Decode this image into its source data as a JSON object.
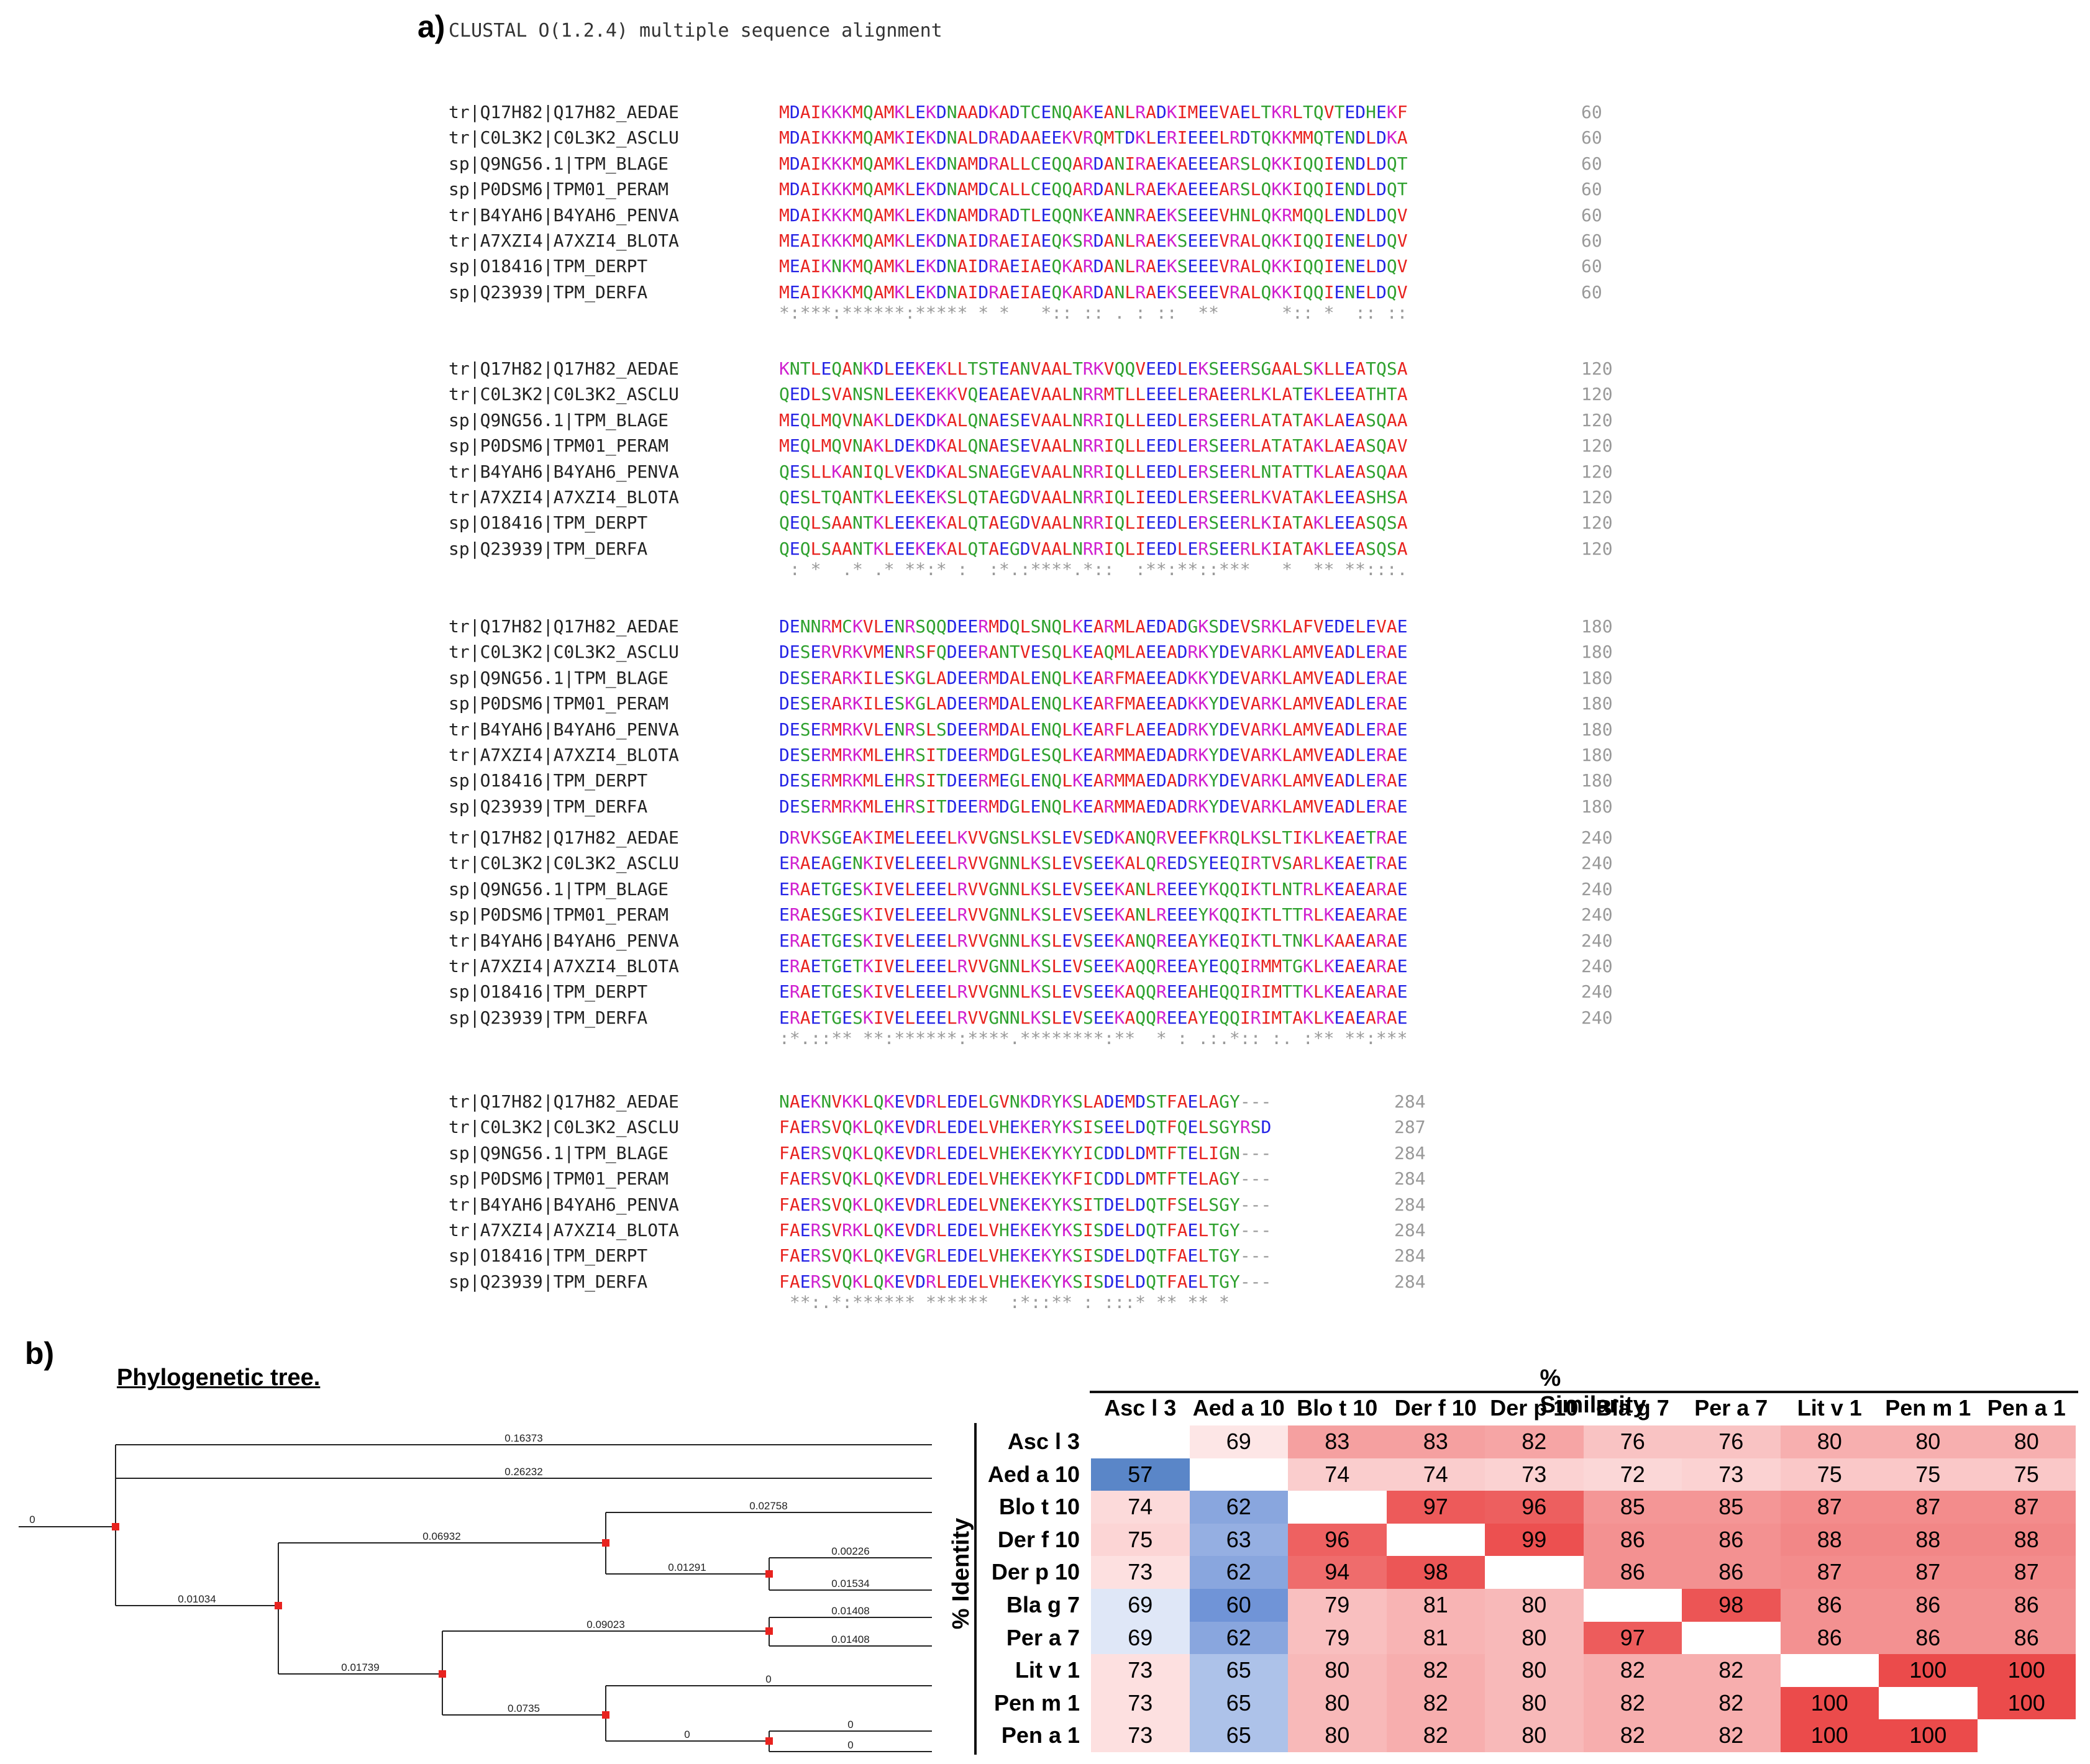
{
  "panel_a_label": "a)",
  "panel_b_label": "b)",
  "alignment": {
    "title": "CLUSTAL O(1.2.4) multiple sequence alignment",
    "blocks": [
      {
        "rows": [
          {
            "name": "tr|Q17H82|Q17H82_AEDAE",
            "seq": "MDAIKKKMQAMKLEKDNAADKADTCENQAKEANLRADKIMEEVAELTKRLTQVTEDHEKF",
            "num": "60"
          },
          {
            "name": "tr|C0L3K2|C0L3K2_ASCLU",
            "seq": "MDAIKKKMQAMKIEKDNALDRADAAEEKVRQMTDKLERIEEELRDTQKKMMQTENDLDKA",
            "num": "60"
          },
          {
            "name": "sp|Q9NG56.1|TPM_BLAGE",
            "seq": "MDAIKKKMQAMKLEKDNAMDRALLCEQQARDANIRAEKAEEEARSLQKKIQQIENDLDQT",
            "num": "60"
          },
          {
            "name": "sp|P0DSM6|TPM01_PERAM",
            "seq": "MDAIKKKMQAMKLEKDNAMDCALLCEQQARDANLRAEKAEEEARSLQKKIQQIENDLDQT",
            "num": "60"
          },
          {
            "name": "tr|B4YAH6|B4YAH6_PENVA",
            "seq": "MDAIKKKMQAMKLEKDNAMDRADTLEQQNKEANNRAEKSEEEVHNLQKRMQQLENDLDQV",
            "num": "60"
          },
          {
            "name": "tr|A7XZI4|A7XZI4_BLOTA",
            "seq": "MEAIKKKMQAMKLEKDNAIDRAEIAEQKSRDANLRAEKSEEEVRALQKKIQQIENELDQV",
            "num": "60"
          },
          {
            "name": "sp|O18416|TPM_DERPT",
            "seq": "MEAIKNKMQAMKLEKDNAIDRAEIAEQKARDANLRAEKSEEEVRALQKKIQQIENELDQV",
            "num": "60"
          },
          {
            "name": "sp|Q23939|TPM_DERFA",
            "seq": "MEAIKKKMQAMKLEKDNAIDRAEIAEQKARDANLRAEKSEEEVRALQKKIQQIENELDQV",
            "num": "60"
          }
        ],
        "cons": "*:***:******:***** * *   *:: :: . : ::  **      *:: *  :: ::"
      },
      {
        "rows": [
          {
            "name": "tr|Q17H82|Q17H82_AEDAE",
            "seq": "KNTLEQANKDLEEKEKLLTSTEANVAALTRKVQQVEEDLEKSEERSGAALSKLLEATQSA",
            "num": "120"
          },
          {
            "name": "tr|C0L3K2|C0L3K2_ASCLU",
            "seq": "QEDLSVANSNLEEKEKKVQEAEAEVAALNRRMTLLEEELERAEERLKLATEKLEEATHTA",
            "num": "120"
          },
          {
            "name": "sp|Q9NG56.1|TPM_BLAGE",
            "seq": "MEQLMQVNAKLDEKDKALQNAESEVAALNRRIQLLEEDLERSEERLATATAKLAEASQAA",
            "num": "120"
          },
          {
            "name": "sp|P0DSM6|TPM01_PERAM",
            "seq": "MEQLMQVNAKLDEKDKALQNAESEVAALNRRIQLLEEDLERSEERLATATAKLAEASQAV",
            "num": "120"
          },
          {
            "name": "tr|B4YAH6|B4YAH6_PENVA",
            "seq": "QESLLKANIQLVEKDKALSNAEGEVAALNRRIQLLEEDLERSEERLNTATTKLAEASQAA",
            "num": "120"
          },
          {
            "name": "tr|A7XZI4|A7XZI4_BLOTA",
            "seq": "QESLTQANTKLEEKEKSLQTAEGDVAALNRRIQLIEEDLERSEERLKVATAKLEEASHSA",
            "num": "120"
          },
          {
            "name": "sp|O18416|TPM_DERPT",
            "seq": "QEQLSAANTKLEEKEKALQTAEGDVAALNRRIQLIEEDLERSEERLKIATAKLEEASQSA",
            "num": "120"
          },
          {
            "name": "sp|Q23939|TPM_DERFA",
            "seq": "QEQLSAANTKLEEKEKALQTAEGDVAALNRRIQLIEEDLERSEERLKIATAKLEEASQSA",
            "num": "120"
          }
        ],
        "cons": " : *  .* .* **:* :  :*.:****.*::  :**:**::***   *  ** **:::."
      },
      {
        "rows": [
          {
            "name": "tr|Q17H82|Q17H82_AEDAE",
            "seq": "DENNRMCKVLENRSQQDEERMDQLSNQLKEARMLAEDADGKSDEVSRKLAFVEDELEVAE",
            "num": "180"
          },
          {
            "name": "tr|C0L3K2|C0L3K2_ASCLU",
            "seq": "DESERVRKVMENRSFQDEERANTVESQLKEAQMLAEEADRKYDEVARKLAMVEADLERAE",
            "num": "180"
          },
          {
            "name": "sp|Q9NG56.1|TPM_BLAGE",
            "seq": "DESERARKILESKGLADEERMDALENQLKEARFMAEEADKKYDEVARKLAMVEADLERAE",
            "num": "180"
          },
          {
            "name": "sp|P0DSM6|TPM01_PERAM",
            "seq": "DESERARKILESKGLADEERMDALENQLKEARFMAEEADKKYDEVARKLAMVEADLERAE",
            "num": "180"
          },
          {
            "name": "tr|B4YAH6|B4YAH6_PENVA",
            "seq": "DESERMRKVLENRSLSDEERMDALENQLKEARFLAEEADRKYDEVARKLAMVEADLERAE",
            "num": "180"
          },
          {
            "name": "tr|A7XZI4|A7XZI4_BLOTA",
            "seq": "DESERMRKMLEHRSITDEERMDGLESQLKEARMMAEDADRKYDEVARKLAMVEADLERAE",
            "num": "180"
          },
          {
            "name": "sp|O18416|TPM_DERPT",
            "seq": "DESERMRKMLEHRSITDEERMEGLENQLKEARMMAEDADRKYDEVARKLAMVEADLERAE",
            "num": "180"
          },
          {
            "name": "sp|Q23939|TPM_DERFA",
            "seq": "DESERMRKMLEHRSITDEERMDGLENQLKEARMMAEDADRKYDEVARKLAMVEADLERAE",
            "num": "180"
          }
        ],
        "cons": ""
      },
      {
        "rows": [
          {
            "name": "tr|Q17H82|Q17H82_AEDAE",
            "seq": "DRVKSGEAKIMELEEELKVVGNSLKSLEVSEDKANQRVEEFKRQLKSLTIKLKEAETRAE",
            "num": "240"
          },
          {
            "name": "tr|C0L3K2|C0L3K2_ASCLU",
            "seq": "ERAEAGENKIVELEEELRVVGNNLKSLEVSEEKALQREDSYEEQIRTVSARLKEAETRAE",
            "num": "240"
          },
          {
            "name": "sp|Q9NG56.1|TPM_BLAGE",
            "seq": "ERAETGESKIVELEEELRVVGNNLKSLEVSEEKANLREEEYKQQIKTLNTRLKEAEARAE",
            "num": "240"
          },
          {
            "name": "sp|P0DSM6|TPM01_PERAM",
            "seq": "ERAESGESKIVELEEELRVVGNNLKSLEVSEEKANLREEEYKQQIKTLTTRLKEAEARAE",
            "num": "240"
          },
          {
            "name": "tr|B4YAH6|B4YAH6_PENVA",
            "seq": "ERAETGESKIVELEEELRVVGNNLKSLEVSEEKANQREEAYKEQIKTLTNKLKAAEARAE",
            "num": "240"
          },
          {
            "name": "tr|A7XZI4|A7XZI4_BLOTA",
            "seq": "ERAETGETKIVELEEELRVVGNNLKSLEVSEEKAQQREEAYEQQIRMMTGKLKEAEARAE",
            "num": "240"
          },
          {
            "name": "sp|O18416|TPM_DERPT",
            "seq": "ERAETGESKIVELEEELRVVGNNLKSLEVSEEKAQQREEAHEQQIRIMTTKLKEAEARAE",
            "num": "240"
          },
          {
            "name": "sp|Q23939|TPM_DERFA",
            "seq": "ERAETGESKIVELEEELRVVGNNLKSLEVSEEKAQQREEAYEQQIRIMTAKLKEAEARAE",
            "num": "240"
          }
        ],
        "cons": ":*.::** **:******:****.********:**  * : .:.*:: :. :** **:***"
      },
      {
        "rows": [
          {
            "name": "tr|Q17H82|Q17H82_AEDAE",
            "seq": "NAEKNVKKLQKEVDRLEDELGVNKDRYKSLADEMDSTFAELAGY---",
            "num": "284"
          },
          {
            "name": "tr|C0L3K2|C0L3K2_ASCLU",
            "seq": "FAERSVQKLQKEVDRLEDELVHEKERYKSISEELDQTFQELSGYRSD",
            "num": "287"
          },
          {
            "name": "sp|Q9NG56.1|TPM_BLAGE",
            "seq": "FAERSVQKLQKEVDRLEDELVHEKEKYKYICDDLDMTFTELIGN---",
            "num": "284"
          },
          {
            "name": "sp|P0DSM6|TPM01_PERAM",
            "seq": "FAERSVQKLQKEVDRLEDELVHEKEKYKFICDDLDMTFTELAGY---",
            "num": "284"
          },
          {
            "name": "tr|B4YAH6|B4YAH6_PENVA",
            "seq": "FAERSVQKLQKEVDRLEDELVNEKEKYKSITDELDQTFSELSGY---",
            "num": "284"
          },
          {
            "name": "tr|A7XZI4|A7XZI4_BLOTA",
            "seq": "FAERSVRKLQKEVDRLEDELVHEKEKYKSISDELDQTFAELTGY---",
            "num": "284"
          },
          {
            "name": "sp|O18416|TPM_DERPT",
            "seq": "FAERSVQKLQKEVGRLEDELVHEKEKYKSISDELDQTFAELTGY---",
            "num": "284"
          },
          {
            "name": "sp|Q23939|TPM_DERFA",
            "seq": "FAERSVQKLQKEVDRLEDELVHEKEKYKSISDELDQTFAELTGY---",
            "num": "284"
          }
        ],
        "cons": " **:.*:****** ******  :*::** : :::* ** ** *"
      }
    ]
  },
  "tree": {
    "title": "Phylogenetic tree.",
    "root_label": "0",
    "branch_labels": [
      "0.16373",
      "0.26232",
      "0.06932",
      "0.02758",
      "0.01291",
      "0.00226",
      "0.01534",
      "0.01034",
      "0.09023",
      "0.01408",
      "0.01408",
      "0.01739",
      "0.0735",
      "0",
      "0",
      "0",
      "0"
    ]
  },
  "matrix": {
    "similarity_title": "% Similarity",
    "identity_title": "% Identity",
    "labels": [
      "Asc l 3",
      "Aed a 10",
      "Blo t 10",
      "Der f 10",
      "Der p 10",
      "Bla g 7",
      "Per a 7",
      "Lit v 1",
      "Pen m 1",
      "Pen a 1"
    ],
    "values": [
      [
        null,
        69,
        83,
        83,
        82,
        76,
        76,
        80,
        80,
        80
      ],
      [
        57,
        null,
        74,
        74,
        73,
        72,
        73,
        75,
        75,
        75
      ],
      [
        74,
        62,
        null,
        97,
        96,
        85,
        85,
        87,
        87,
        87
      ],
      [
        75,
        63,
        96,
        null,
        99,
        86,
        86,
        88,
        88,
        88
      ],
      [
        73,
        62,
        94,
        98,
        null,
        86,
        86,
        87,
        87,
        87
      ],
      [
        69,
        60,
        79,
        81,
        80,
        null,
        98,
        86,
        86,
        86
      ],
      [
        69,
        62,
        79,
        81,
        80,
        97,
        null,
        86,
        86,
        86
      ],
      [
        73,
        65,
        80,
        82,
        80,
        82,
        82,
        null,
        100,
        100
      ],
      [
        73,
        65,
        80,
        82,
        80,
        82,
        82,
        100,
        null,
        100
      ],
      [
        73,
        65,
        80,
        82,
        80,
        82,
        82,
        100,
        100,
        null
      ]
    ]
  }
}
